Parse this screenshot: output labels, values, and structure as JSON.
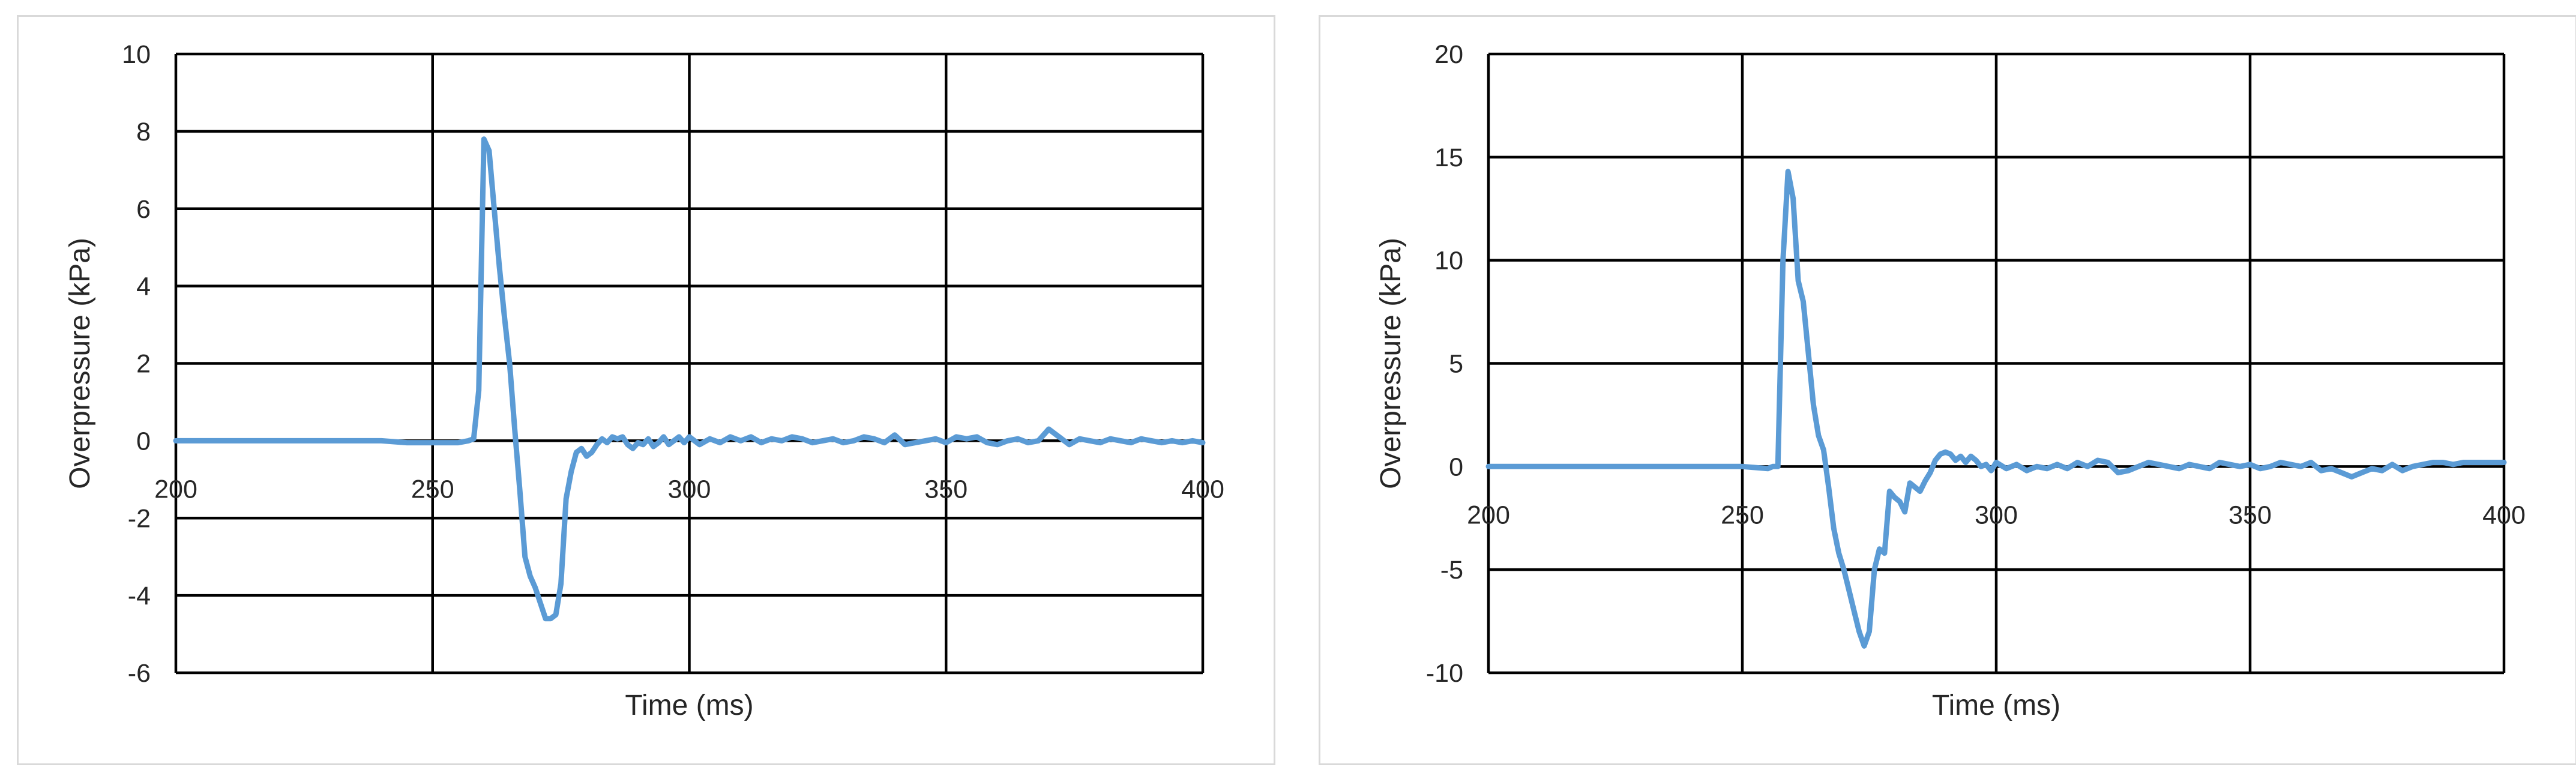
{
  "chart_data": [
    {
      "type": "line",
      "title": "",
      "xlabel": "Time (ms)",
      "ylabel": "Overpressure (kPa)",
      "xlim": [
        200,
        400
      ],
      "ylim": [
        -6,
        10
      ],
      "xticks": [
        200,
        250,
        300,
        350,
        400
      ],
      "yticks": [
        -6,
        -4,
        -2,
        0,
        2,
        4,
        6,
        8,
        10
      ],
      "xtick_labels": [
        "200",
        "250",
        "300",
        "350",
        "400"
      ],
      "ytick_labels": [
        "-6",
        "-4",
        "-2",
        "0",
        "2",
        "4",
        "6",
        "8",
        "10"
      ],
      "grid": true,
      "legend": "none",
      "color": "#5b9bd5",
      "series": [
        {
          "x": [
            200,
            210,
            220,
            230,
            240,
            245,
            250,
            255,
            257,
            258,
            259,
            260,
            261,
            262,
            263,
            264,
            265,
            266,
            267,
            268,
            269,
            270,
            271,
            272,
            273,
            274,
            275,
            276,
            277,
            278,
            279,
            280,
            281,
            282,
            283,
            284,
            285,
            286,
            287,
            288,
            289,
            290,
            291,
            292,
            293,
            294,
            295,
            296,
            297,
            298,
            299,
            300,
            302,
            304,
            306,
            308,
            310,
            312,
            314,
            316,
            318,
            320,
            322,
            324,
            326,
            328,
            330,
            332,
            334,
            336,
            338,
            340,
            342,
            344,
            346,
            348,
            350,
            352,
            354,
            356,
            358,
            360,
            362,
            364,
            366,
            368,
            370,
            372,
            374,
            376,
            378,
            380,
            382,
            384,
            386,
            388,
            390,
            392,
            394,
            396,
            398,
            400
          ],
          "y": [
            0.0,
            0.0,
            0.0,
            0.0,
            0.0,
            -0.05,
            -0.05,
            -0.05,
            0.0,
            0.05,
            1.3,
            7.8,
            7.5,
            6.0,
            4.5,
            3.2,
            2.0,
            0.3,
            -1.3,
            -3.0,
            -3.5,
            -3.8,
            -4.2,
            -4.6,
            -4.6,
            -4.5,
            -3.7,
            -1.5,
            -0.8,
            -0.3,
            -0.2,
            -0.4,
            -0.3,
            -0.1,
            0.05,
            -0.05,
            0.1,
            0.05,
            0.1,
            -0.1,
            -0.2,
            -0.05,
            -0.1,
            0.05,
            -0.15,
            -0.05,
            0.1,
            -0.1,
            0.0,
            0.1,
            -0.05,
            0.1,
            -0.1,
            0.05,
            -0.05,
            0.1,
            0.0,
            0.1,
            -0.05,
            0.05,
            0.0,
            0.1,
            0.05,
            -0.05,
            0.0,
            0.05,
            -0.05,
            0.0,
            0.1,
            0.05,
            -0.05,
            0.15,
            -0.1,
            -0.05,
            0.0,
            0.05,
            -0.05,
            0.1,
            0.05,
            0.1,
            -0.05,
            -0.1,
            0.0,
            0.05,
            -0.05,
            0.0,
            0.3,
            0.1,
            -0.1,
            0.05,
            0.0,
            -0.05,
            0.05,
            0.0,
            -0.05,
            0.05,
            0.0,
            -0.05,
            0.0,
            -0.05,
            0.0,
            -0.05
          ]
        }
      ]
    },
    {
      "type": "line",
      "title": "",
      "xlabel": "Time (ms)",
      "ylabel": "Overpressure (kPa)",
      "xlim": [
        200,
        400
      ],
      "ylim": [
        -10,
        20
      ],
      "xticks": [
        200,
        250,
        300,
        350,
        400
      ],
      "yticks": [
        -10,
        -5,
        0,
        5,
        10,
        15,
        20
      ],
      "xtick_labels": [
        "200",
        "250",
        "300",
        "350",
        "400"
      ],
      "ytick_labels": [
        "-10",
        "-5",
        "0",
        "5",
        "10",
        "15",
        "20"
      ],
      "grid": true,
      "legend": "none",
      "color": "#5b9bd5",
      "series": [
        {
          "x": [
            200,
            210,
            220,
            230,
            240,
            250,
            255,
            256,
            257,
            258,
            259,
            260,
            261,
            262,
            263,
            264,
            265,
            266,
            267,
            268,
            269,
            270,
            271,
            272,
            273,
            274,
            275,
            276,
            277,
            278,
            279,
            280,
            281,
            282,
            283,
            284,
            285,
            286,
            287,
            288,
            289,
            290,
            291,
            292,
            293,
            294,
            295,
            296,
            297,
            298,
            299,
            300,
            302,
            304,
            306,
            308,
            310,
            312,
            314,
            316,
            318,
            320,
            322,
            324,
            326,
            328,
            330,
            332,
            334,
            336,
            338,
            340,
            342,
            344,
            346,
            348,
            350,
            352,
            354,
            356,
            358,
            360,
            362,
            364,
            366,
            368,
            370,
            372,
            374,
            376,
            378,
            380,
            382,
            384,
            386,
            388,
            390,
            392,
            394,
            396,
            398,
            400
          ],
          "y": [
            0.0,
            0.0,
            0.0,
            0.0,
            0.0,
            0.0,
            -0.1,
            0.0,
            0.0,
            10.0,
            14.3,
            13.0,
            9.0,
            8.0,
            5.5,
            3.0,
            1.5,
            0.8,
            -1.0,
            -3.0,
            -4.2,
            -5.0,
            -6.0,
            -7.0,
            -8.0,
            -8.7,
            -8.0,
            -5.0,
            -4.0,
            -4.2,
            -1.2,
            -1.5,
            -1.7,
            -2.2,
            -0.8,
            -1.0,
            -1.2,
            -0.7,
            -0.3,
            0.3,
            0.6,
            0.7,
            0.6,
            0.3,
            0.5,
            0.2,
            0.5,
            0.3,
            0.0,
            0.1,
            -0.2,
            0.2,
            -0.1,
            0.1,
            -0.2,
            0.0,
            -0.1,
            0.1,
            -0.1,
            0.2,
            0.0,
            0.3,
            0.2,
            -0.3,
            -0.2,
            0.0,
            0.2,
            0.1,
            0.0,
            -0.1,
            0.1,
            0.0,
            -0.1,
            0.2,
            0.1,
            0.0,
            0.1,
            -0.1,
            0.0,
            0.2,
            0.1,
            0.0,
            0.2,
            -0.2,
            -0.1,
            -0.3,
            -0.5,
            -0.3,
            -0.1,
            -0.2,
            0.1,
            -0.2,
            0.0,
            0.1,
            0.2,
            0.2,
            0.1,
            0.2,
            0.2,
            0.2,
            0.2,
            0.2
          ]
        }
      ]
    }
  ]
}
